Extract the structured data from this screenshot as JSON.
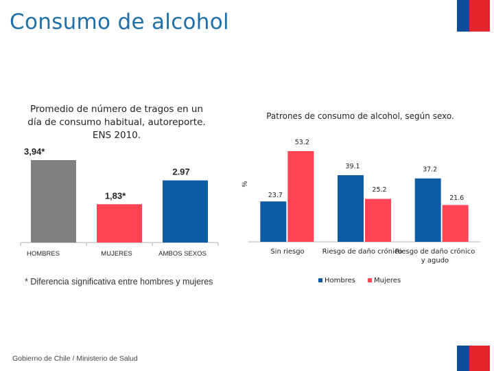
{
  "slide": {
    "title": "Consumo de alcohol",
    "footnote": "* Diferencia significativa entre hombres y mujeres",
    "credit": "Gobierno de Chile / Ministerio de Salud",
    "colors": {
      "title": "#1f6fa8",
      "gray": "#808080",
      "red": "#ff4553",
      "blue": "#0f5ba3"
    }
  },
  "chart_data": [
    {
      "type": "bar",
      "title": "Promedio de número de tragos en un día de consumo habitual, autoreporte. ENS 2010.",
      "categories": [
        "HOMBRES",
        "MUJERES",
        "AMBOS SEXOS"
      ],
      "values": [
        3.94,
        1.83,
        2.97
      ],
      "value_labels": [
        "3,94*",
        "1,83*",
        "2.97"
      ],
      "colors": [
        "#808080",
        "#ff4553",
        "#0f5ba3"
      ],
      "ylim": [
        0,
        4.2
      ],
      "grid": false
    },
    {
      "type": "bar",
      "title": "Patrones de consumo de alcohol, según sexo.",
      "ylabel": "%",
      "categories": [
        "Sin riesgo",
        "Riesgo de daño crónico",
        "Riesgo de daño crónico y agudo"
      ],
      "series": [
        {
          "name": "Hombres",
          "values": [
            23.7,
            39.1,
            37.2
          ],
          "color": "#0f5ba3"
        },
        {
          "name": "Mujeres",
          "values": [
            53.2,
            25.2,
            21.6
          ],
          "color": "#ff4553"
        }
      ],
      "ylim": [
        0,
        60
      ],
      "legend": "bottom",
      "grid": false
    }
  ]
}
